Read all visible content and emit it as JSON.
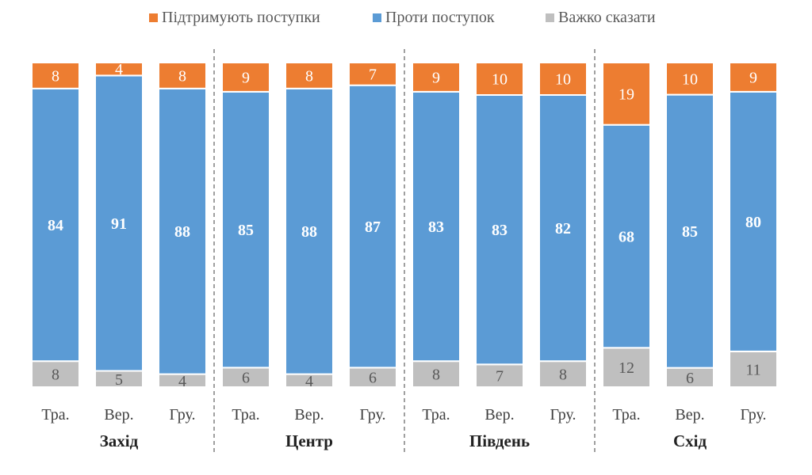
{
  "chart_data": {
    "type": "bar",
    "stacked": true,
    "normalized_percent": true,
    "legend_position": "top",
    "grid": false,
    "title": "",
    "xlabel": "",
    "ylabel": "",
    "groups": [
      "Захід",
      "Центр",
      "Південь",
      "Схід"
    ],
    "subcategories": [
      "Тра.",
      "Вер.",
      "Гру."
    ],
    "series": [
      {
        "name": "Підтримують поступки",
        "color": "#ED7D31",
        "values": [
          8,
          4,
          8,
          9,
          8,
          7,
          9,
          10,
          10,
          19,
          10,
          9
        ]
      },
      {
        "name": "Проти поступок",
        "color": "#5B9BD5",
        "values": [
          84,
          91,
          88,
          85,
          88,
          87,
          83,
          83,
          82,
          68,
          85,
          80
        ]
      },
      {
        "name": "Важко сказати",
        "color": "#BFBFBF",
        "values": [
          8,
          5,
          4,
          6,
          4,
          6,
          8,
          7,
          8,
          12,
          6,
          11
        ]
      }
    ]
  }
}
